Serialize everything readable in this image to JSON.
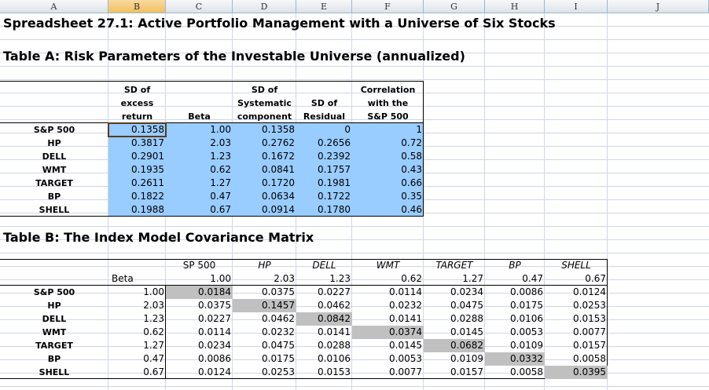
{
  "columns": [
    "A",
    "B",
    "C",
    "D",
    "E",
    "F",
    "G",
    "H",
    "I",
    "J"
  ],
  "selected_column": "B",
  "colors": {
    "tableA_fill": "#99ccff",
    "diag_fill": "#c0c0c0",
    "header_selected": "#f1c15f"
  },
  "title_main": "Spreadsheet 27.1:  Active Portfolio Management with a Universe of Six Stocks",
  "title_a": "Table A:  Risk Parameters of the Investable Universe (annualized)",
  "title_b": "Table B:  The Index Model Covariance Matrix",
  "tableA": {
    "headers": [
      [
        "SD of",
        "excess",
        "return"
      ],
      [
        "Beta"
      ],
      [
        "SD of",
        "Systematic",
        "component"
      ],
      [
        "SD of",
        "Residual"
      ],
      [
        "Correlation",
        "with the",
        "S&P 500"
      ]
    ],
    "rows": [
      {
        "name": "S&P 500",
        "vals": [
          "0.1358",
          "1.00",
          "0.1358",
          "0",
          "1"
        ]
      },
      {
        "name": "HP",
        "vals": [
          "0.3817",
          "2.03",
          "0.2762",
          "0.2656",
          "0.72"
        ]
      },
      {
        "name": "DELL",
        "vals": [
          "0.2901",
          "1.23",
          "0.1672",
          "0.2392",
          "0.58"
        ]
      },
      {
        "name": "WMT",
        "vals": [
          "0.1935",
          "0.62",
          "0.0841",
          "0.1757",
          "0.43"
        ]
      },
      {
        "name": "TARGET",
        "vals": [
          "0.2611",
          "1.27",
          "0.1720",
          "0.1981",
          "0.66"
        ]
      },
      {
        "name": "BP",
        "vals": [
          "0.1822",
          "0.47",
          "0.0634",
          "0.1722",
          "0.35"
        ]
      },
      {
        "name": "SHELL",
        "vals": [
          "0.1988",
          "0.67",
          "0.0914",
          "0.1780",
          "0.46"
        ]
      }
    ]
  },
  "tableB": {
    "headers": [
      "SP 500",
      "HP",
      "DELL",
      "WMT",
      "TARGET",
      "BP",
      "SHELL"
    ],
    "beta_label": "Beta",
    "betas": [
      "1.00",
      "2.03",
      "1.23",
      "0.62",
      "1.27",
      "0.47",
      "0.67"
    ],
    "rows": [
      {
        "name": "S&P 500",
        "beta": "1.00",
        "vals": [
          "0.0184",
          "0.0375",
          "0.0227",
          "0.0114",
          "0.0234",
          "0.0086",
          "0.0124"
        ]
      },
      {
        "name": "HP",
        "beta": "2.03",
        "vals": [
          "0.0375",
          "0.1457",
          "0.0462",
          "0.0232",
          "0.0475",
          "0.0175",
          "0.0253"
        ]
      },
      {
        "name": "DELL",
        "beta": "1.23",
        "vals": [
          "0.0227",
          "0.0462",
          "0.0842",
          "0.0141",
          "0.0288",
          "0.0106",
          "0.0153"
        ]
      },
      {
        "name": "WMT",
        "beta": "0.62",
        "vals": [
          "0.0114",
          "0.0232",
          "0.0141",
          "0.0374",
          "0.0145",
          "0.0053",
          "0.0077"
        ]
      },
      {
        "name": "TARGET",
        "beta": "1.27",
        "vals": [
          "0.0234",
          "0.0475",
          "0.0288",
          "0.0145",
          "0.0682",
          "0.0109",
          "0.0157"
        ]
      },
      {
        "name": "BP",
        "beta": "0.47",
        "vals": [
          "0.0086",
          "0.0175",
          "0.0106",
          "0.0053",
          "0.0109",
          "0.0332",
          "0.0058"
        ]
      },
      {
        "name": "SHELL",
        "beta": "0.67",
        "vals": [
          "0.0124",
          "0.0253",
          "0.0153",
          "0.0077",
          "0.0157",
          "0.0058",
          "0.0395"
        ]
      }
    ]
  }
}
